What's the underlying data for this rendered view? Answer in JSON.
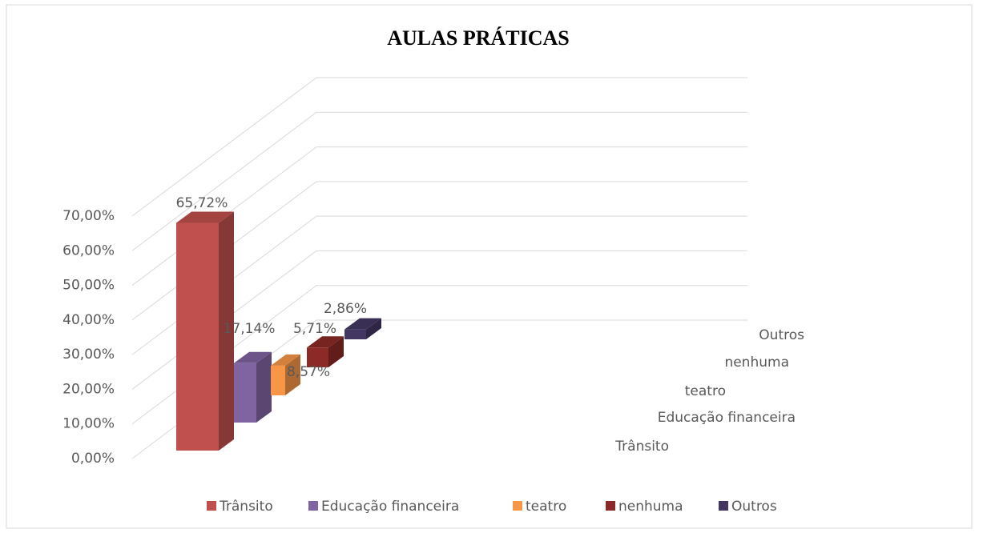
{
  "chart_data": {
    "type": "bar3d",
    "title": "AULAS PRÁTICAS",
    "categories": [
      "Trânsito",
      "Educação financeira",
      "teatro",
      "nenhuma",
      "Outros"
    ],
    "values": [
      65.72,
      17.14,
      8.57,
      5.71,
      2.86
    ],
    "value_labels": [
      "65,72%",
      "17,14%",
      "8,57%",
      "5,71%",
      "2,86%"
    ],
    "colors": [
      "#c0504d",
      "#8064a2",
      "#f79646",
      "#8c2a27",
      "#433663"
    ],
    "ylim": [
      0,
      70
    ],
    "yticks": [
      {
        "value": 0,
        "label": "0,00%"
      },
      {
        "value": 10,
        "label": "10,00%"
      },
      {
        "value": 20,
        "label": "20,00%"
      },
      {
        "value": 30,
        "label": "30,00%"
      },
      {
        "value": 40,
        "label": "40,00%"
      },
      {
        "value": 50,
        "label": "50,00%"
      },
      {
        "value": 60,
        "label": "60,00%"
      },
      {
        "value": 70,
        "label": "70,00%"
      }
    ],
    "grid": true,
    "legend": "bottom"
  }
}
